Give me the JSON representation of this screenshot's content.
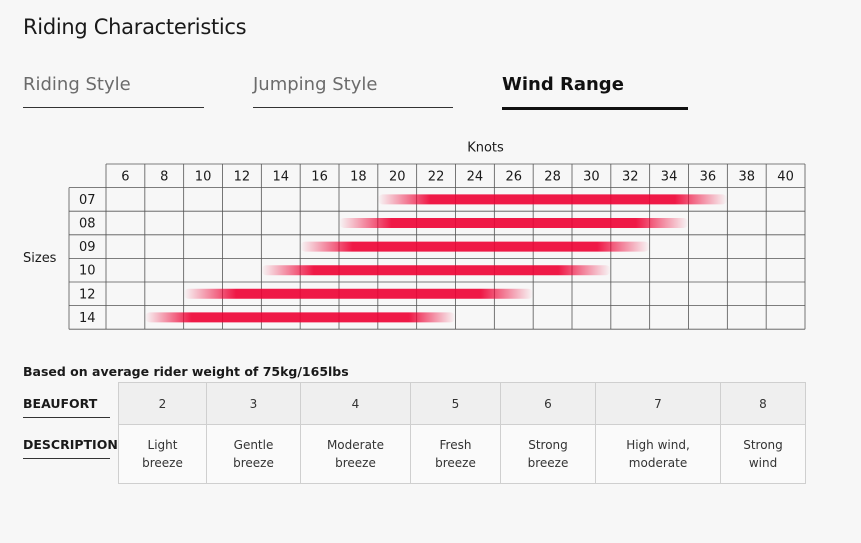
{
  "title": "Riding Characteristics",
  "tabs": {
    "items": [
      "Riding Style",
      "Jumping Style",
      "Wind Range"
    ],
    "active": 2
  },
  "wind_range": {
    "x_label": "Knots",
    "y_label": "Sizes",
    "knots": [
      6,
      8,
      10,
      12,
      14,
      16,
      18,
      20,
      22,
      24,
      26,
      28,
      30,
      32,
      34,
      36,
      38,
      40
    ],
    "rows": [
      {
        "size": "07",
        "min": 20,
        "max": 36
      },
      {
        "size": "08",
        "min": 18,
        "max": 34
      },
      {
        "size": "09",
        "min": 16,
        "max": 32
      },
      {
        "size": "10",
        "min": 14,
        "max": 30
      },
      {
        "size": "12",
        "min": 10,
        "max": 26
      },
      {
        "size": "14",
        "min": 8,
        "max": 22
      }
    ]
  },
  "note": "Based on average rider weight of 75kg/165lbs",
  "beaufort_table": {
    "row_labels": [
      "BEAUFORT",
      "DESCRIPTION"
    ],
    "columns": [
      {
        "beaufort": 2,
        "description": "Light breeze"
      },
      {
        "beaufort": 3,
        "description": "Gentle breeze"
      },
      {
        "beaufort": 4,
        "description": "Moderate breeze"
      },
      {
        "beaufort": 5,
        "description": "Fresh breeze"
      },
      {
        "beaufort": 6,
        "description": "Strong breeze"
      },
      {
        "beaufort": 7,
        "description": "High wind, moderate"
      },
      {
        "beaufort": 8,
        "description": "Strong wind"
      }
    ]
  }
}
